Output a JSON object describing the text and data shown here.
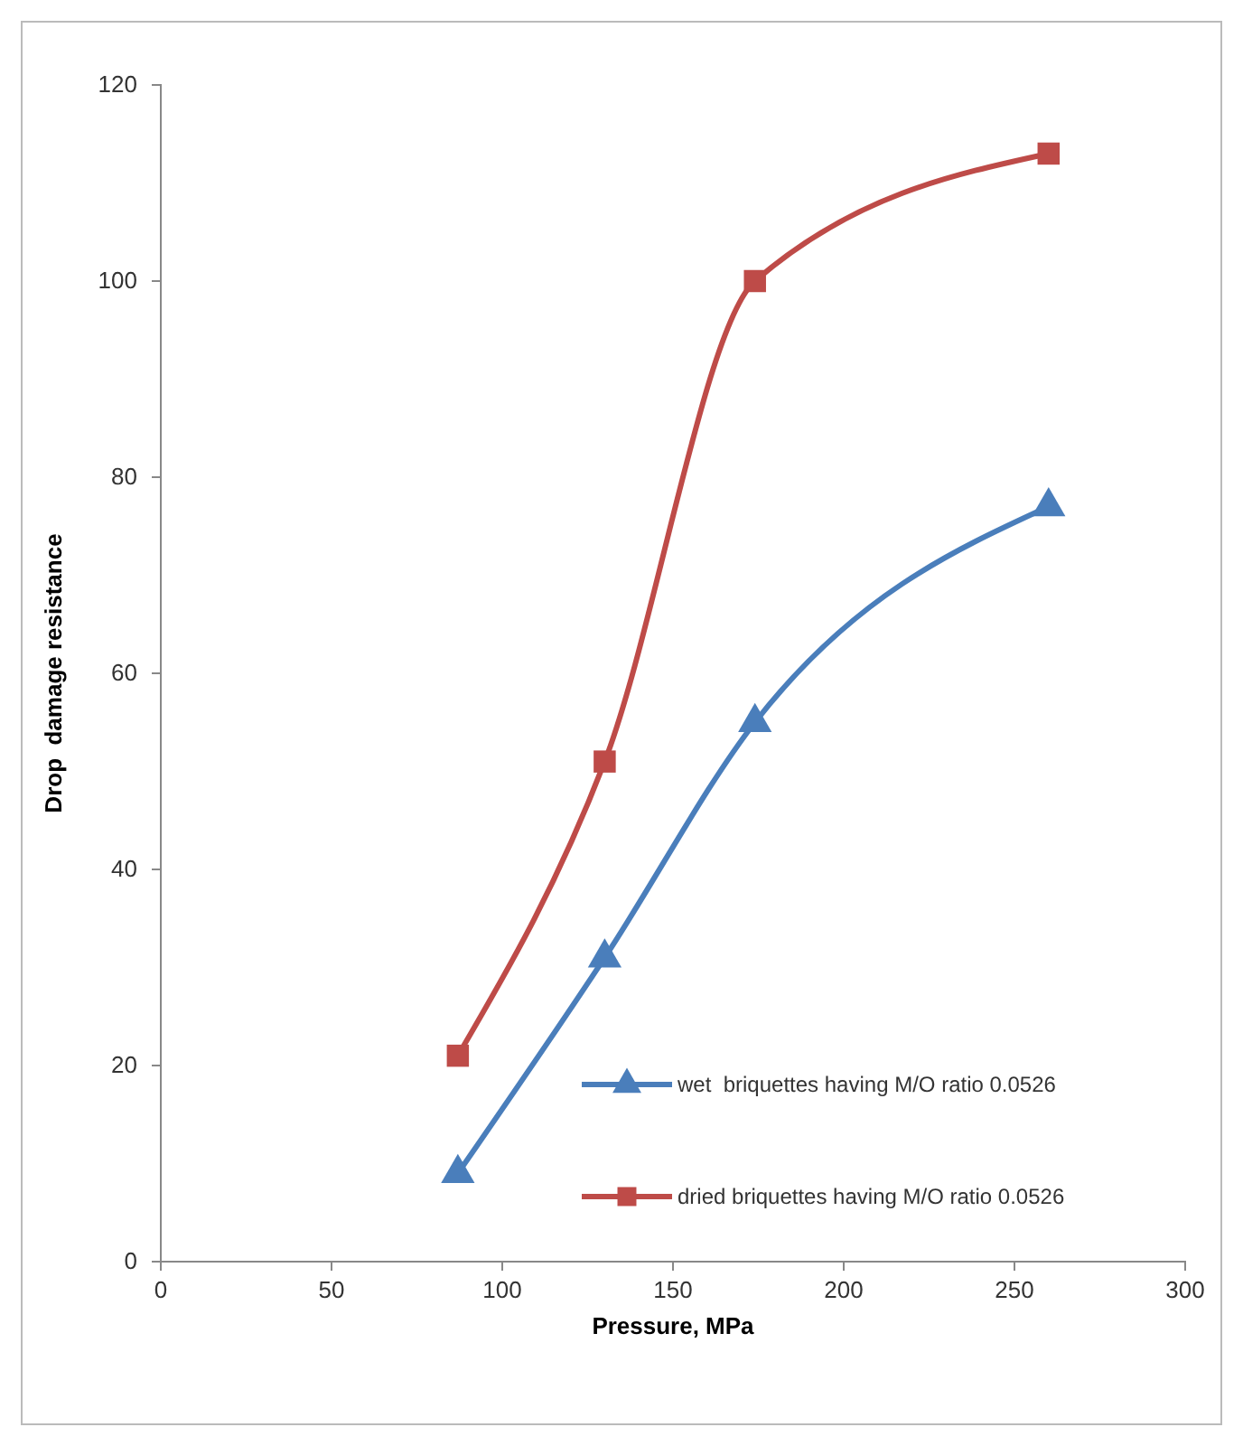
{
  "chart_data": {
    "type": "line",
    "xlabel": "Pressure, MPa",
    "ylabel": "Drop  damage resistance",
    "xlim": [
      0,
      300
    ],
    "xticks": [
      0,
      50,
      100,
      150,
      200,
      250,
      300
    ],
    "ylim": [
      0,
      120
    ],
    "yticks": [
      0,
      20,
      40,
      60,
      80,
      100,
      120
    ],
    "grid": false,
    "legend": "bottom right",
    "line_style": "solid",
    "series": [
      {
        "name": "wet  briquettes having M/O ratio 0.0526",
        "color": "#4a7ebb",
        "marker": "triangle",
        "x": [
          87,
          130,
          174,
          260
        ],
        "values": [
          9,
          31,
          55,
          77
        ]
      },
      {
        "name": "dried briquettes having M/O ratio 0.0526",
        "color": "#be4b48",
        "marker": "square",
        "x": [
          87,
          130,
          174,
          260
        ],
        "values": [
          21,
          51,
          100,
          113
        ]
      }
    ]
  }
}
